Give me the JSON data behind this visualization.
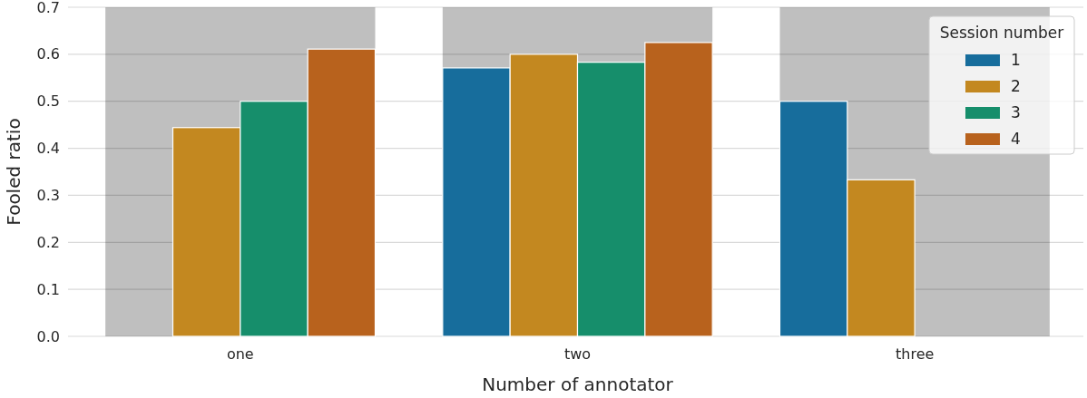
{
  "chart_data": {
    "type": "bar",
    "xlabel": "Number of annotator",
    "ylabel": "Fooled ratio",
    "legend_title": "Session number",
    "legend": "top right",
    "grid": "y",
    "categories": [
      "one",
      "two",
      "three"
    ],
    "series": [
      {
        "name": "1",
        "color": "#176d9c",
        "values": [
          null,
          0.571,
          0.5
        ]
      },
      {
        "name": "2",
        "color": "#c38820",
        "values": [
          0.444,
          0.6,
          0.333
        ]
      },
      {
        "name": "3",
        "color": "#168e6b",
        "values": [
          0.5,
          0.583,
          null
        ]
      },
      {
        "name": "4",
        "color": "#b8621d",
        "values": [
          0.611,
          0.625,
          null
        ]
      }
    ],
    "bands": [
      {
        "axis": "x",
        "from": "one",
        "to": "one",
        "color": "#bfbfbf"
      },
      {
        "axis": "x",
        "from": "two",
        "to": "two",
        "color": "#bfbfbf"
      },
      {
        "axis": "x",
        "from": "three",
        "to": "three",
        "color": "#bfbfbf"
      }
    ],
    "ylim": [
      0,
      0.7
    ],
    "yticks": [
      {
        "value": 0,
        "label": "0.0"
      },
      {
        "value": 0.1,
        "label": "0.1"
      },
      {
        "value": 0.2,
        "label": "0.2"
      },
      {
        "value": 0.3,
        "label": "0.3"
      },
      {
        "value": 0.4,
        "label": "0.4"
      },
      {
        "value": 0.5,
        "label": "0.5"
      },
      {
        "value": 0.6,
        "label": "0.6"
      },
      {
        "value": 0.7,
        "label": "0.7"
      }
    ]
  }
}
